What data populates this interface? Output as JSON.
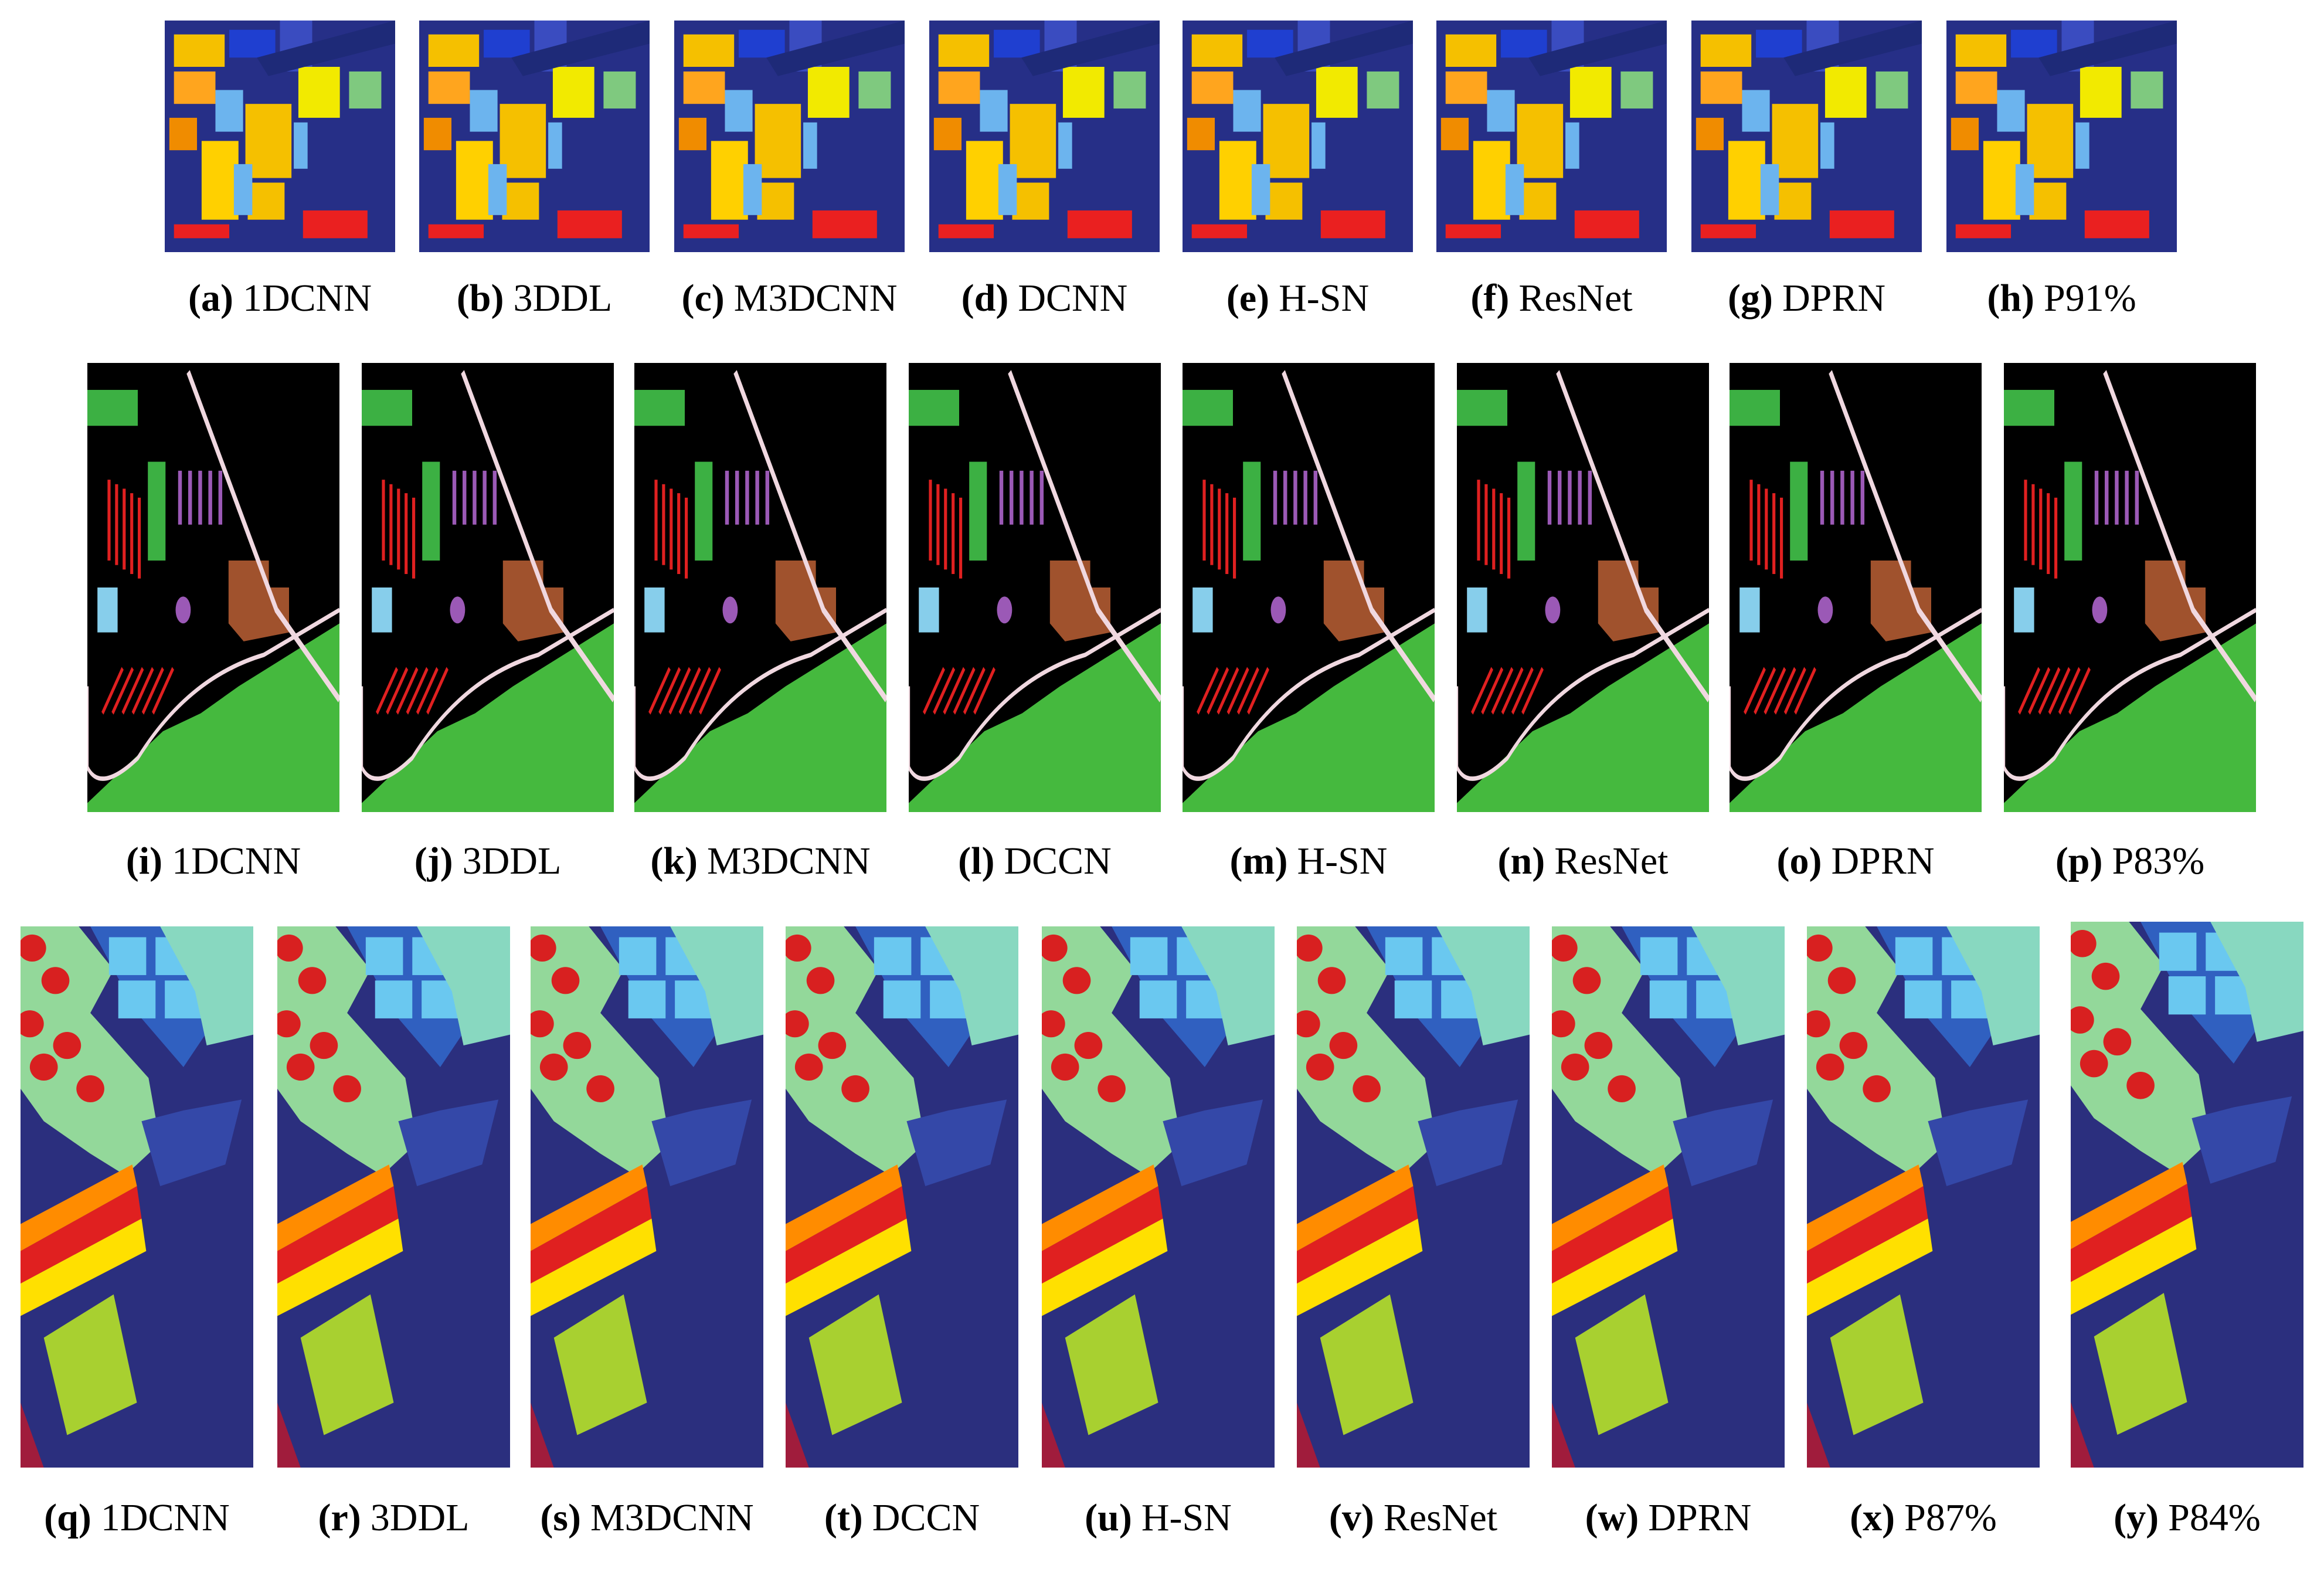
{
  "rows": [
    {
      "panels": [
        {
          "label": "(a)",
          "method": "1DCNN"
        },
        {
          "label": "(b)",
          "method": "3DDL"
        },
        {
          "label": "(c)",
          "method": "M3DCNN"
        },
        {
          "label": "(d)",
          "method": "DCNN"
        },
        {
          "label": "(e)",
          "method": "H-SN"
        },
        {
          "label": "(f)",
          "method": "ResNet"
        },
        {
          "label": "(g)",
          "method": "DPRN"
        },
        {
          "label": "(h)",
          "method": "P91%"
        }
      ]
    },
    {
      "panels": [
        {
          "label": "(i)",
          "method": "1DCNN"
        },
        {
          "label": "(j)",
          "method": "3DDL"
        },
        {
          "label": "(k)",
          "method": "M3DCNN"
        },
        {
          "label": "(l)",
          "method": "DCCN"
        },
        {
          "label": "(m)",
          "method": "H-SN"
        },
        {
          "label": "(n)",
          "method": "ResNet"
        },
        {
          "label": "(o)",
          "method": "DPRN"
        },
        {
          "label": "(p)",
          "method": "P83%"
        }
      ]
    },
    {
      "panels": [
        {
          "label": "(q)",
          "method": "1DCNN"
        },
        {
          "label": "(r)",
          "method": "3DDL"
        },
        {
          "label": "(s)",
          "method": "M3DCNN"
        },
        {
          "label": "(t)",
          "method": "DCCN"
        },
        {
          "label": "(u)",
          "method": "H-SN"
        },
        {
          "label": "(v)",
          "method": "ResNet"
        },
        {
          "label": "(w)",
          "method": "DPRN"
        },
        {
          "label": "(x)",
          "method": "P87%"
        },
        {
          "label": "(y)",
          "method": "P84%"
        }
      ]
    }
  ]
}
